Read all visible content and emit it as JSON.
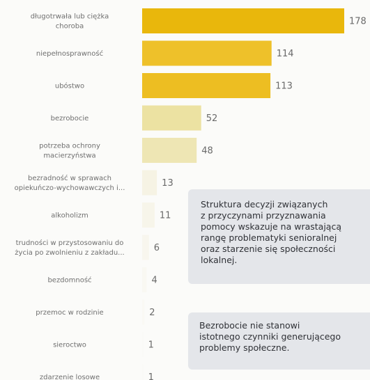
{
  "chart_data": {
    "type": "bar",
    "orientation": "horizontal",
    "categories": [
      "długotrwała lub ciężka\nchoroba",
      "niepełnosprawność",
      "ubóstwo",
      "bezrobocie",
      "potrzeba ochrony\nmacierzyństwa",
      "bezradność w sprawach\nopiekuńczo-wychowawczych i...",
      "alkoholizm",
      "trudności w przystosowaniu do\nżycia po zwolnieniu z zakładu...",
      "bezdomność",
      "przemoc w rodzinie",
      "sieroctwo",
      "zdarzenie losowe"
    ],
    "values": [
      178,
      114,
      113,
      52,
      48,
      13,
      11,
      6,
      4,
      2,
      1,
      1
    ],
    "colors": [
      "#e9b70c",
      "#eec12a",
      "#edbe22",
      "#ece2a2",
      "#eee6b4",
      "#f6f3e4",
      "#f7f5ea",
      "#f8f6ee",
      "#f9f8f2",
      "#faf9f4",
      "#fafaf6",
      "#fafaf6"
    ],
    "title": "",
    "xlabel": "",
    "ylabel": ""
  },
  "notes": [
    "Struktura decyzji związanych\nz przyczynami przyznawania\npomocy wskazuje na wrastającą\nrangę problematyki senioralnej\noraz starzenie się społeczności\nlokalnej.",
    "Bezrobocie nie stanowi\nistotnego czynniki generującego\nproblemy społeczne."
  ]
}
